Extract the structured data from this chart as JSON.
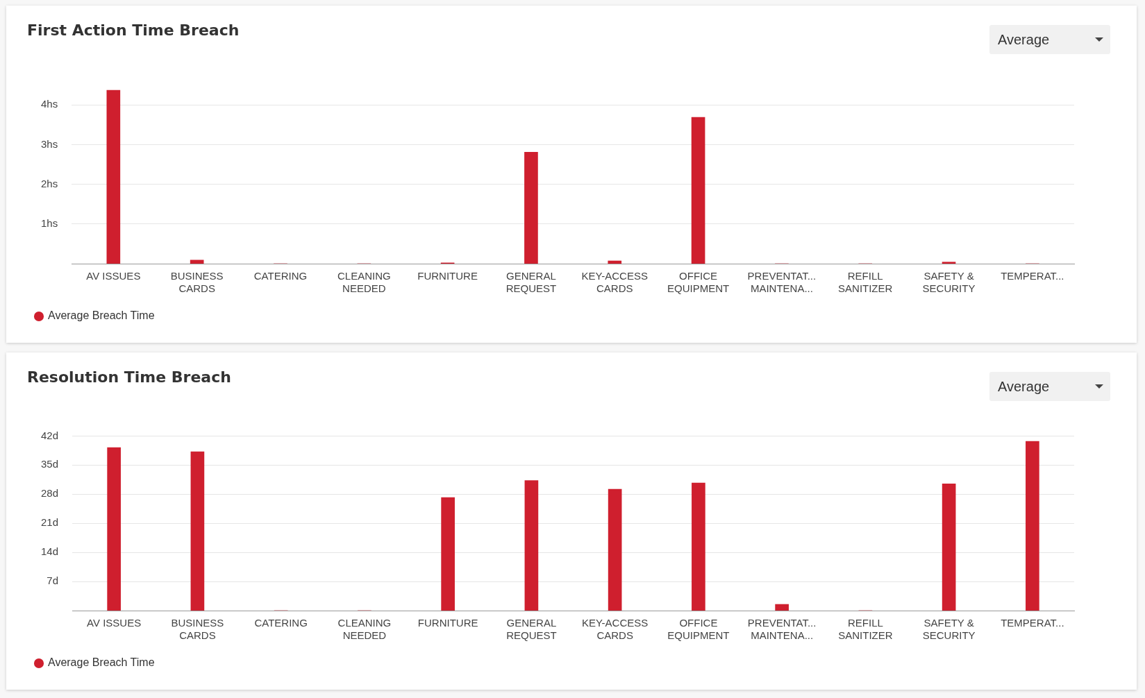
{
  "chart_data": [
    {
      "type": "bar",
      "title": "First Action Time Breach",
      "categories": [
        "AV ISSUES",
        "BUSINESS CARDS",
        "CATERING",
        "CLEANING NEEDED",
        "FURNITURE",
        "GENERAL REQUEST",
        "KEY-ACCESS CARDS",
        "OFFICE EQUIPMENT",
        "PREVENTAT... MAINTENA...",
        "REFILL SANITIZER",
        "SAFETY & SECURITY",
        "TEMPERAT..."
      ],
      "series": [
        {
          "name": "Average Breach Time",
          "color": "#cf1f2e",
          "values": [
            4.37,
            0.09,
            0,
            0,
            0.02,
            2.81,
            0.07,
            3.69,
            0,
            0,
            0.04,
            0
          ]
        }
      ],
      "ylim": [
        0,
        4.4
      ],
      "yticks": [
        {
          "value": 1,
          "label": "1hs"
        },
        {
          "value": 2,
          "label": "2hs"
        },
        {
          "value": 3,
          "label": "3hs"
        },
        {
          "value": 4,
          "label": "4hs"
        }
      ],
      "grid": "y",
      "legend": "bottom left",
      "annotations": [
        "Average"
      ]
    },
    {
      "type": "bar",
      "title": "Resolution Time Breach",
      "categories": [
        "AV ISSUES",
        "BUSINESS CARDS",
        "CATERING",
        "CLEANING NEEDED",
        "FURNITURE",
        "GENERAL REQUEST",
        "KEY-ACCESS CARDS",
        "OFFICE EQUIPMENT",
        "PREVENTAT... MAINTENA...",
        "REFILL SANITIZER",
        "SAFETY & SECURITY",
        "TEMPERAT..."
      ],
      "series": [
        {
          "name": "Average Breach Time",
          "color": "#cf1f2e",
          "values": [
            39.2,
            38.2,
            0,
            0,
            27.2,
            31.3,
            29.2,
            30.7,
            1.5,
            0,
            30.5,
            40.7
          ]
        }
      ],
      "ylim": [
        0,
        42
      ],
      "yticks": [
        {
          "value": 7,
          "label": "7d"
        },
        {
          "value": 14,
          "label": "14d"
        },
        {
          "value": 21,
          "label": "21d"
        },
        {
          "value": 28,
          "label": "28d"
        },
        {
          "value": 35,
          "label": "35d"
        },
        {
          "value": 42,
          "label": "42d"
        }
      ],
      "grid": "y",
      "legend": "bottom left",
      "annotations": [
        "Average"
      ]
    }
  ]
}
